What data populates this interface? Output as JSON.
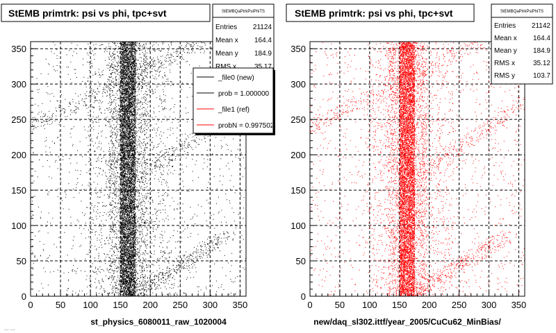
{
  "colors": {
    "left_points": "#000000",
    "right_points": "#ff0000",
    "frame": "#000000",
    "grid": "#000000"
  },
  "chart_data": [
    {
      "type": "scatter",
      "title": "StEMB primtrk: psi vs phi, tpc+svt",
      "xlabel": "st_physics_6080011_raw_1020004",
      "ylabel": "",
      "xlim": [
        0,
        360
      ],
      "ylim": [
        0,
        360
      ],
      "xticks": [
        0,
        50,
        100,
        150,
        200,
        250,
        300,
        350
      ],
      "yticks": [
        0,
        50,
        100,
        150,
        200,
        250,
        300,
        350
      ],
      "grid": true,
      "color": "#000000",
      "stats": {
        "name": "StEMBQaPtrkPsiPhiTS",
        "rows": [
          {
            "label": "Entries",
            "value": "21124"
          },
          {
            "label": "Mean x",
            "value": "164.4"
          },
          {
            "label": "Mean y",
            "value": "184.9"
          },
          {
            "label": "RMS x",
            "value": "35.17"
          }
        ]
      },
      "legend": {
        "placement": "top-right",
        "entries": [
          {
            "label": "_file0 (new)",
            "color": "#000000"
          },
          {
            "label": "prob = 1.000000",
            "color": "#000000"
          },
          {
            "label": "_file1 (ref)",
            "color": "#ff0000"
          },
          {
            "label": "probN = 0.997502",
            "color": "#ff0000"
          }
        ]
      },
      "series": [
        {
          "entries": 21124,
          "components": [
            {
              "kind": "band",
              "x": [
                150,
                175
              ],
              "y": [
                0,
                360
              ],
              "weight": 0.55
            },
            {
              "kind": "band",
              "x": [
                130,
                195
              ],
              "y": [
                0,
                360
              ],
              "weight": 0.17
            },
            {
              "kind": "band",
              "x": [
                95,
                240
              ],
              "y": [
                0,
                360
              ],
              "weight": 0.1
            },
            {
              "kind": "diagonal",
              "x": [
                0,
                290
              ],
              "y": [
                240,
                360
              ],
              "weight": 0.03
            },
            {
              "kind": "diagonal",
              "x": [
                175,
                330
              ],
              "y": [
                5,
                85
              ],
              "weight": 0.03
            },
            {
              "kind": "diagonal",
              "x": [
                190,
                360
              ],
              "y": [
                175,
                275
              ],
              "weight": 0.02
            },
            {
              "kind": "uniform",
              "x": [
                0,
                360
              ],
              "y": [
                0,
                360
              ],
              "weight": 0.1
            }
          ]
        }
      ]
    },
    {
      "type": "scatter",
      "title": "StEMB primtrk: psi vs phi, tpc+svt",
      "xlabel": "new/daq_sl302.ittf/year_2005/CuCu62_MinBias/",
      "ylabel": "",
      "xlim": [
        0,
        360
      ],
      "ylim": [
        0,
        360
      ],
      "xticks": [
        0,
        50,
        100,
        150,
        200,
        250,
        300,
        350
      ],
      "yticks": [
        0,
        50,
        100,
        150,
        200,
        250,
        300,
        350
      ],
      "grid": true,
      "color": "#ff0000",
      "stats": {
        "name": "StEMBQaPtrkPsiPhiTS",
        "rows": [
          {
            "label": "Entries",
            "value": "21142"
          },
          {
            "label": "Mean x",
            "value": "164.4"
          },
          {
            "label": "Mean y",
            "value": "184.9"
          },
          {
            "label": "RMS x",
            "value": "35.12"
          },
          {
            "label": "RMS y",
            "value": "103.7"
          }
        ]
      },
      "series": [
        {
          "entries": 21142,
          "components": [
            {
              "kind": "band",
              "x": [
                150,
                175
              ],
              "y": [
                0,
                360
              ],
              "weight": 0.55
            },
            {
              "kind": "band",
              "x": [
                130,
                195
              ],
              "y": [
                0,
                360
              ],
              "weight": 0.17
            },
            {
              "kind": "band",
              "x": [
                95,
                240
              ],
              "y": [
                0,
                360
              ],
              "weight": 0.1
            },
            {
              "kind": "diagonal",
              "x": [
                0,
                290
              ],
              "y": [
                240,
                360
              ],
              "weight": 0.03
            },
            {
              "kind": "diagonal",
              "x": [
                175,
                330
              ],
              "y": [
                5,
                85
              ],
              "weight": 0.03
            },
            {
              "kind": "diagonal",
              "x": [
                190,
                360
              ],
              "y": [
                175,
                275
              ],
              "weight": 0.02
            },
            {
              "kind": "uniform",
              "x": [
                0,
                360
              ],
              "y": [
                0,
                360
              ],
              "weight": 0.1
            }
          ]
        }
      ]
    }
  ],
  "footer": {
    "text": "... ..."
  }
}
